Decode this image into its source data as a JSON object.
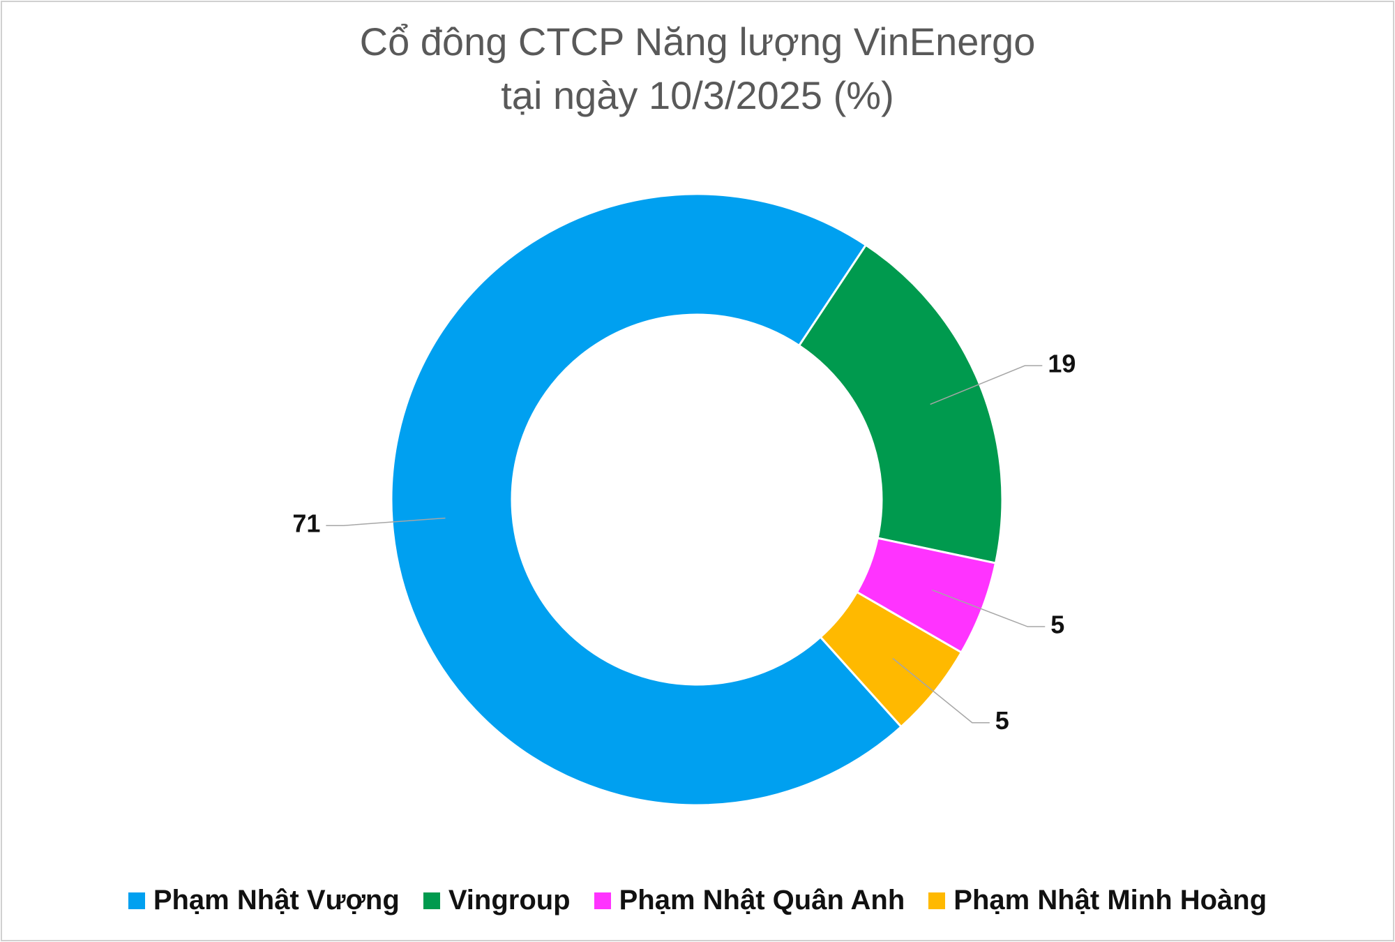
{
  "chart_data": {
    "type": "donut",
    "title": "Cổ đông CTCP Năng lượng VinEnergo",
    "subtitle": "tại ngày 10/3/2025 (%)",
    "categories": [
      "Phạm Nhật Vượng",
      "Vingroup",
      "Phạm Nhật Quân Anh",
      "Phạm Nhật Minh Hoàng"
    ],
    "values": [
      71,
      19,
      5,
      5
    ],
    "colors": [
      "#00a0f0",
      "#009a4e",
      "#ff33ff",
      "#ffb900"
    ],
    "start_angle": 138,
    "legend": "bottom"
  }
}
